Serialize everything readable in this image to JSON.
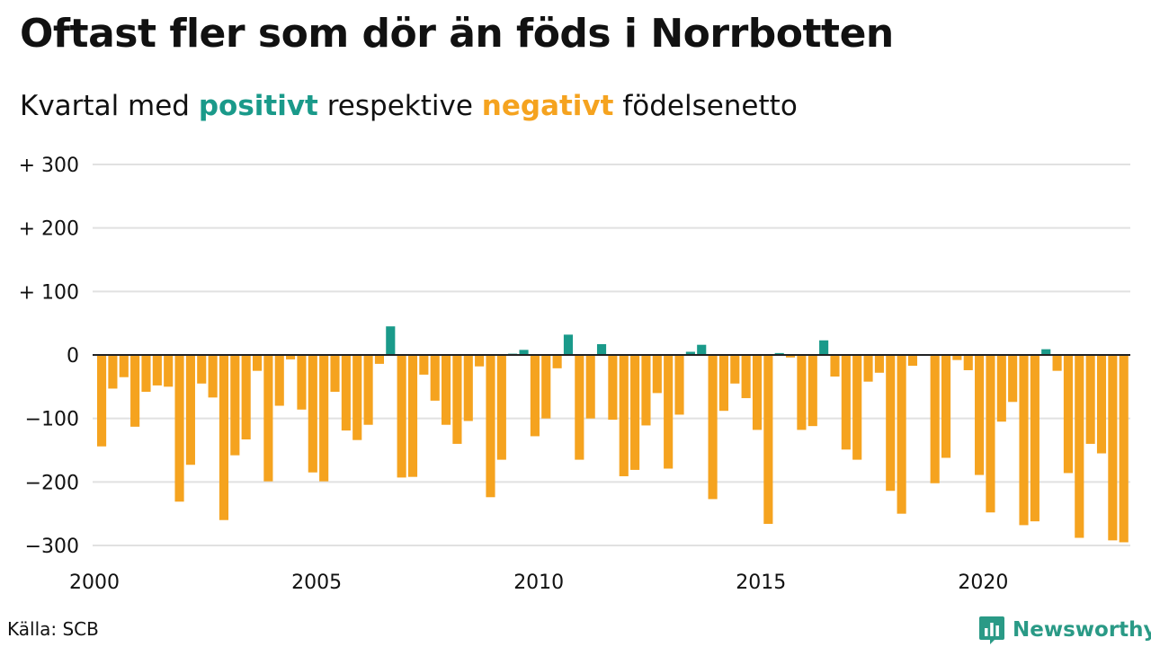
{
  "title": "Oftast fler som dör än föds i Norrbotten",
  "subtitle": {
    "prefix": "Kvartal med ",
    "positive_word": "positivt",
    "middle": " respektive ",
    "negative_word": "negativt",
    "suffix": " födelsenetto"
  },
  "colors": {
    "positive": "#1a9a8a",
    "negative": "#f5a31f",
    "grid": "#e1e1e1",
    "axis": "#222222",
    "brand": "#2a9a86"
  },
  "source": "Källa: SCB",
  "brand": {
    "name": "Newsworthy",
    "icon": "bar-chart-speech-bubble-icon"
  },
  "chart_data": {
    "type": "bar",
    "unit": "quarter",
    "start_year": 2000,
    "ylim": [
      -310,
      300
    ],
    "yticks": [
      {
        "value": 300,
        "label": "+ 300"
      },
      {
        "value": 200,
        "label": "+ 200"
      },
      {
        "value": 100,
        "label": "+ 100"
      },
      {
        "value": 0,
        "label": "0"
      },
      {
        "value": -100,
        "label": "−100"
      },
      {
        "value": -200,
        "label": "−200"
      },
      {
        "value": -300,
        "label": "−300"
      }
    ],
    "xticks": [
      {
        "value": 2000,
        "label": "2000"
      },
      {
        "value": 2005,
        "label": "2005"
      },
      {
        "value": 2010,
        "label": "2010"
      },
      {
        "value": 2015,
        "label": "2015"
      },
      {
        "value": 2020,
        "label": "2020"
      }
    ],
    "grid": true,
    "values": [
      -144,
      -53,
      -35,
      -113,
      -58,
      -48,
      -50,
      -231,
      -173,
      -45,
      -67,
      -260,
      -158,
      -133,
      -25,
      -199,
      -80,
      -7,
      -86,
      -185,
      -199,
      -58,
      -119,
      -134,
      -110,
      -14,
      45,
      -193,
      -192,
      -31,
      -72,
      -110,
      -140,
      -104,
      -18,
      -224,
      -165,
      2,
      8,
      -128,
      -100,
      -21,
      32,
      -165,
      -100,
      17,
      -102,
      -191,
      -181,
      -111,
      -60,
      -179,
      -94,
      5,
      16,
      -227,
      -88,
      -45,
      -68,
      -118,
      -266,
      3,
      -4,
      -118,
      -112,
      23,
      -34,
      -149,
      -165,
      -42,
      -28,
      -214,
      -250,
      -17,
      0,
      -202,
      -162,
      -8,
      -24,
      -189,
      -248,
      -105,
      -74,
      -268,
      -262,
      9,
      -25,
      -186,
      -288,
      -140,
      -155,
      -292,
      -295
    ]
  }
}
